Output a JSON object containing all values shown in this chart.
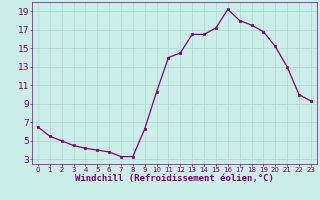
{
  "x": [
    0,
    1,
    2,
    3,
    4,
    5,
    6,
    7,
    8,
    9,
    10,
    11,
    12,
    13,
    14,
    15,
    16,
    17,
    18,
    19,
    20,
    21,
    22,
    23
  ],
  "y": [
    6.5,
    5.5,
    5.0,
    4.5,
    4.2,
    4.0,
    3.8,
    3.3,
    3.3,
    6.3,
    10.3,
    14.0,
    14.5,
    16.5,
    16.5,
    17.2,
    19.2,
    18.0,
    17.5,
    16.8,
    15.2,
    13.0,
    10.0,
    9.3
  ],
  "line_color": "#800080",
  "marker": "s",
  "marker_size": 2.0,
  "bg_color": "#cceee8",
  "grid_color": "#aad8d0",
  "xlabel": "Windchill (Refroidissement éolien,°C)",
  "xlabel_color": "#800080",
  "tick_color": "#800080",
  "ylim": [
    2.5,
    20.0
  ],
  "xlim": [
    -0.5,
    23.5
  ],
  "yticks": [
    3,
    5,
    7,
    9,
    11,
    13,
    15,
    17,
    19
  ],
  "xticks": [
    0,
    1,
    2,
    3,
    4,
    5,
    6,
    7,
    8,
    9,
    10,
    11,
    12,
    13,
    14,
    15,
    16,
    17,
    18,
    19,
    20,
    21,
    22,
    23
  ],
  "ytick_fontsize": 6.5,
  "xtick_fontsize": 5.0,
  "xlabel_fontsize": 6.5
}
